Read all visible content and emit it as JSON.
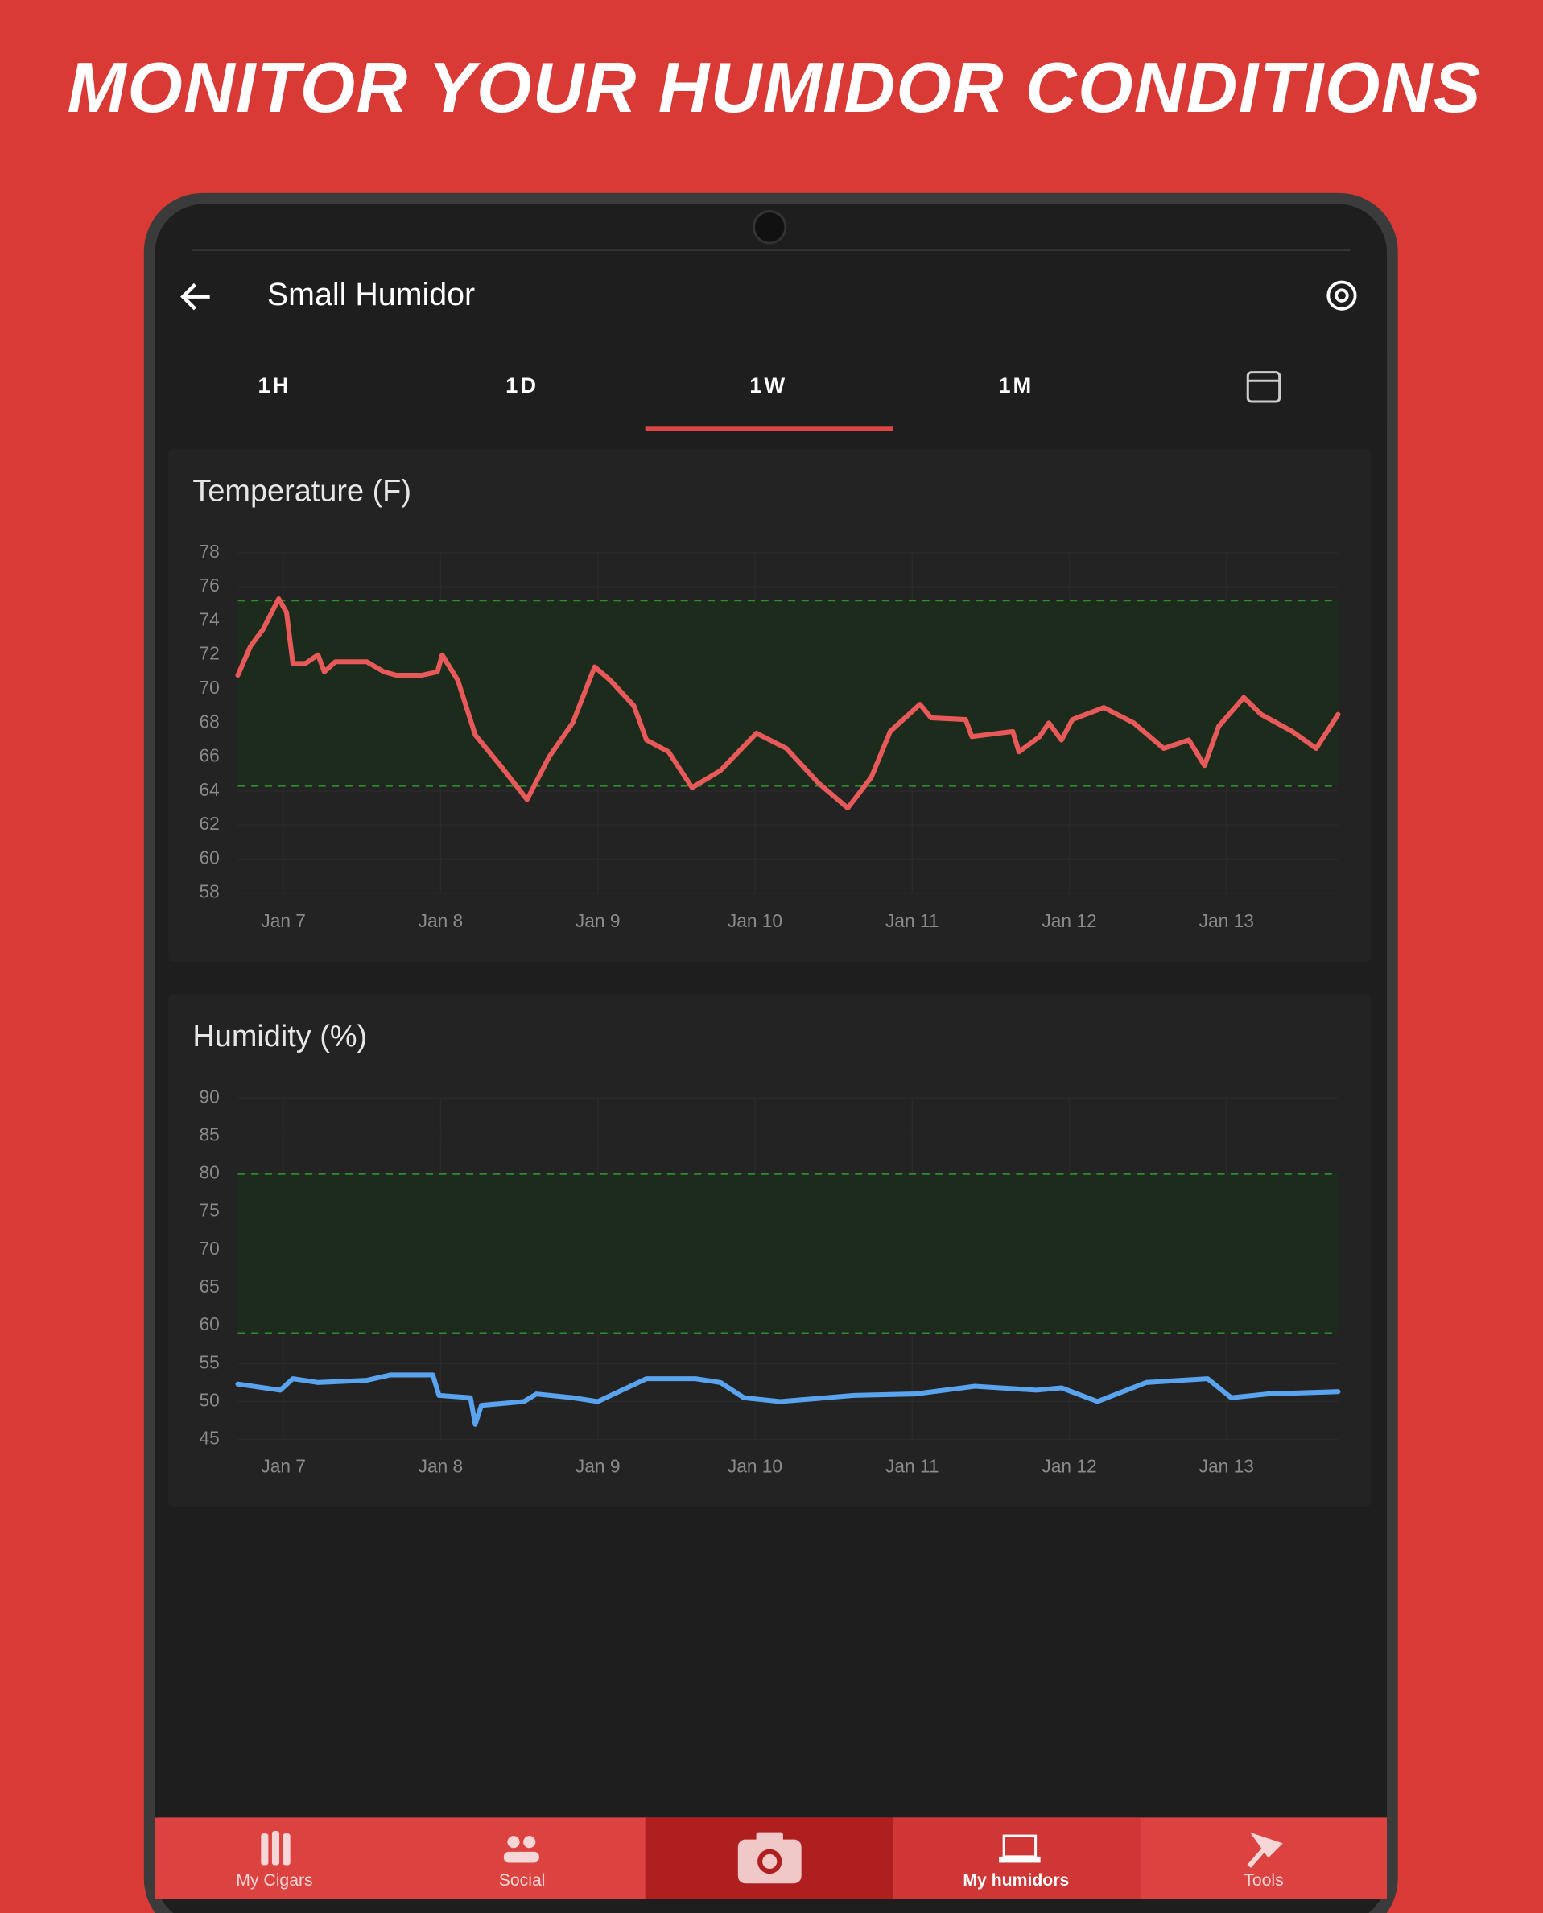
{
  "header": {
    "title": "MONITOR YOUR HUMIDOR CONDITIONS"
  },
  "app_bar": {
    "title": "Small Humidor"
  },
  "tabs": [
    "1H",
    "1D",
    "1W",
    "1M"
  ],
  "selected_tab": 2,
  "nav": [
    "My Cigars",
    "Social",
    "My humidors",
    "Tools"
  ],
  "chart_data": [
    {
      "type": "line",
      "title": "Temperature (F)",
      "color": "#e85a5a",
      "x": [
        6.71,
        6.79,
        6.87,
        6.97,
        7.02,
        7.06,
        7.14,
        7.22,
        7.26,
        7.33,
        7.53,
        7.64,
        7.72,
        7.88,
        7.98,
        8.01,
        8.11,
        8.22,
        8.38,
        8.55,
        8.69,
        8.84,
        8.98,
        9.08,
        9.23,
        9.31,
        9.45,
        9.6,
        9.78,
        10.01,
        10.2,
        10.4,
        10.59,
        10.74,
        10.86,
        11.05,
        11.12,
        11.34,
        11.38,
        11.64,
        11.68,
        11.81,
        11.87,
        11.95,
        12.02,
        12.22,
        12.41,
        12.6,
        12.76,
        12.86,
        12.95,
        13.11,
        13.22,
        13.42,
        13.57,
        13.71
      ],
      "values": [
        70.8,
        72.5,
        73.5,
        75.3,
        74.5,
        71.5,
        71.5,
        72.0,
        71.0,
        71.6,
        71.6,
        71.0,
        70.8,
        70.8,
        71.0,
        72.0,
        70.5,
        67.3,
        65.5,
        63.5,
        66.0,
        68.0,
        71.3,
        70.5,
        69.0,
        67.0,
        66.3,
        64.2,
        65.2,
        67.4,
        66.5,
        64.5,
        63.0,
        64.8,
        67.5,
        69.1,
        68.3,
        68.2,
        67.2,
        67.5,
        66.3,
        67.2,
        68.0,
        67.0,
        68.2,
        68.9,
        68.0,
        66.5,
        67.0,
        65.5,
        67.8,
        69.5,
        68.5,
        67.5,
        66.5,
        68.5
      ],
      "range": [
        64.3,
        75.2
      ],
      "xlim": [
        6.71,
        13.71
      ],
      "xticks": [
        {
          "value": 7,
          "label": "Jan 7"
        },
        {
          "value": 8,
          "label": "Jan 8"
        },
        {
          "value": 9,
          "label": "Jan 9"
        },
        {
          "value": 10,
          "label": "Jan 10"
        },
        {
          "value": 11,
          "label": "Jan 11"
        },
        {
          "value": 12,
          "label": "Jan 12"
        },
        {
          "value": 13,
          "label": "Jan 13"
        }
      ],
      "ylim": [
        58,
        78
      ],
      "yticks": [
        58,
        60,
        62,
        64,
        66,
        68,
        70,
        72,
        74,
        76,
        78
      ],
      "grid": true
    },
    {
      "type": "line",
      "title": "Humidity (%)",
      "color": "#5aa3ee",
      "x": [
        6.71,
        6.98,
        7.06,
        7.22,
        7.53,
        7.68,
        7.95,
        7.99,
        8.19,
        8.22,
        8.26,
        8.53,
        8.61,
        8.84,
        9.0,
        9.31,
        9.62,
        9.78,
        9.93,
        10.16,
        10.63,
        11.02,
        11.4,
        11.79,
        11.95,
        12.18,
        12.49,
        12.88,
        13.03,
        13.26,
        13.71
      ],
      "values": [
        52.3,
        51.5,
        53.0,
        52.5,
        52.8,
        53.5,
        53.5,
        50.8,
        50.5,
        47.0,
        49.5,
        50.0,
        51.0,
        50.5,
        50.0,
        53.0,
        53.0,
        52.5,
        50.5,
        50.0,
        50.8,
        51.0,
        52.0,
        51.5,
        51.8,
        50.0,
        52.5,
        53.0,
        50.5,
        51.0,
        51.3
      ],
      "range": [
        59,
        80
      ],
      "xlim": [
        6.71,
        13.71
      ],
      "xticks": [
        {
          "value": 7,
          "label": "Jan 7"
        },
        {
          "value": 8,
          "label": "Jan 8"
        },
        {
          "value": 9,
          "label": "Jan 9"
        },
        {
          "value": 10,
          "label": "Jan 10"
        },
        {
          "value": 11,
          "label": "Jan 11"
        },
        {
          "value": 12,
          "label": "Jan 12"
        },
        {
          "value": 13,
          "label": "Jan 13"
        }
      ],
      "ylim": [
        45,
        90
      ],
      "yticks": [
        45,
        50,
        55,
        60,
        65,
        70,
        75,
        80,
        85,
        90
      ],
      "grid": true
    }
  ]
}
